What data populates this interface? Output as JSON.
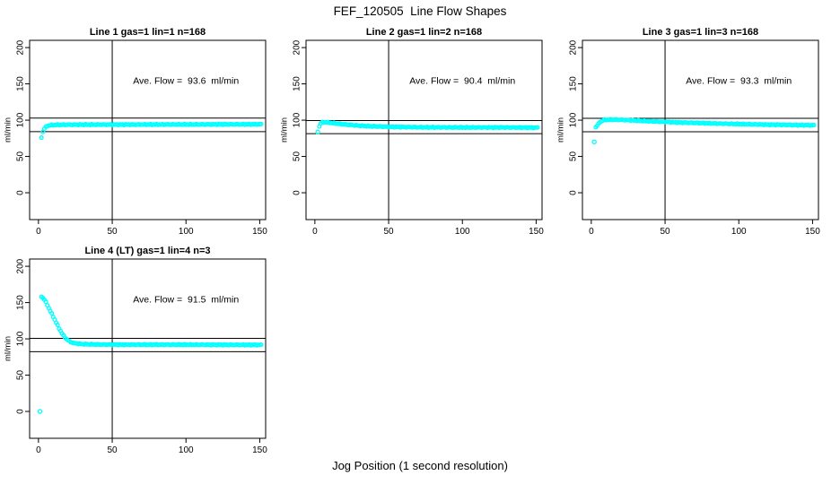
{
  "figure": {
    "title": "FEF_120505  Line Flow Shapes",
    "xlabel": "Jog Position (1 second resolution)",
    "background_color": "#ffffff",
    "axis_color": "#000000",
    "point_color": "#00ffff"
  },
  "chart_data": [
    {
      "type": "scatter",
      "title": "Line 1 gas=1 lin=1 n=168",
      "annotation": "Ave. Flow =  93.6  ml/min",
      "ave_flow_ml_min": 93.6,
      "ylabel": "ml/min",
      "x_ticks": [
        0,
        50,
        100,
        150
      ],
      "y_ticks": [
        0,
        50,
        100,
        150,
        200
      ],
      "xlim": [
        -6,
        154
      ],
      "ylim": [
        -37,
        210
      ],
      "vline_x": 50,
      "hlines": [
        102.9,
        84.2
      ],
      "point_color": "#00ffff",
      "x_step": 1,
      "x_range": [
        2,
        151
      ],
      "profile_anchors": [
        [
          2,
          76
        ],
        [
          3,
          84
        ],
        [
          4,
          88.5
        ],
        [
          5,
          90.5
        ],
        [
          6,
          92
        ],
        [
          8,
          93
        ],
        [
          12,
          93.5
        ],
        [
          20,
          93.7
        ],
        [
          40,
          93.8
        ],
        [
          80,
          94
        ],
        [
          120,
          94.2
        ],
        [
          151,
          94.3
        ]
      ],
      "outliers": []
    },
    {
      "type": "scatter",
      "title": "Line 2 gas=1 lin=2 n=168",
      "annotation": "Ave. Flow =  90.4  ml/min",
      "ave_flow_ml_min": 90.4,
      "ylabel": "ml/min",
      "x_ticks": [
        0,
        50,
        100,
        150
      ],
      "y_ticks": [
        0,
        50,
        100,
        150,
        200
      ],
      "xlim": [
        -6,
        154
      ],
      "ylim": [
        -37,
        210
      ],
      "vline_x": 50,
      "hlines": [
        99.4,
        81.4
      ],
      "point_color": "#00ffff",
      "x_step": 1,
      "x_range": [
        3,
        151
      ],
      "profile_anchors": [
        [
          3,
          91.5
        ],
        [
          4,
          95.5
        ],
        [
          5,
          96.8
        ],
        [
          7,
          97.2
        ],
        [
          10,
          96.6
        ],
        [
          15,
          95.2
        ],
        [
          20,
          94.2
        ],
        [
          25,
          93.2
        ],
        [
          30,
          92.4
        ],
        [
          40,
          91.4
        ],
        [
          50,
          90.8
        ],
        [
          70,
          90.2
        ],
        [
          100,
          89.9
        ],
        [
          130,
          89.9
        ],
        [
          151,
          89.7
        ]
      ],
      "outliers": [
        [
          2,
          83.5
        ]
      ]
    },
    {
      "type": "scatter",
      "title": "Line 3 gas=1 lin=3 n=168",
      "annotation": "Ave. Flow =  93.3  ml/min",
      "ave_flow_ml_min": 93.3,
      "ylabel": "ml/min",
      "x_ticks": [
        0,
        50,
        100,
        150
      ],
      "y_ticks": [
        0,
        50,
        100,
        150,
        200
      ],
      "xlim": [
        -6,
        154
      ],
      "ylim": [
        -37,
        210
      ],
      "vline_x": 50,
      "hlines": [
        102.6,
        84.0
      ],
      "point_color": "#00ffff",
      "x_step": 1,
      "x_range": [
        3,
        151
      ],
      "profile_anchors": [
        [
          3,
          90.5
        ],
        [
          4,
          92.5
        ],
        [
          5,
          95
        ],
        [
          6,
          97.5
        ],
        [
          8,
          99.8
        ],
        [
          10,
          100.4
        ],
        [
          15,
          100.6
        ],
        [
          20,
          100.4
        ],
        [
          25,
          100
        ],
        [
          30,
          99.4
        ],
        [
          40,
          98.4
        ],
        [
          50,
          97.6
        ],
        [
          60,
          96.8
        ],
        [
          80,
          95.6
        ],
        [
          100,
          94.6
        ],
        [
          120,
          93.8
        ],
        [
          151,
          92.9
        ]
      ],
      "outliers": [
        [
          2,
          70
        ]
      ]
    },
    {
      "type": "scatter",
      "title": "Line 4 (LT) gas=1 lin=4 n=3",
      "annotation": "Ave. Flow =  91.5  ml/min",
      "ave_flow_ml_min": 91.5,
      "ylabel": "ml/min",
      "x_ticks": [
        0,
        50,
        100,
        150
      ],
      "y_ticks": [
        0,
        50,
        100,
        150,
        200
      ],
      "xlim": [
        -6,
        154
      ],
      "ylim": [
        -37,
        210
      ],
      "vline_x": 50,
      "hlines": [
        100.7,
        82.4
      ],
      "point_color": "#00ffff",
      "x_step": 1,
      "x_range": [
        2,
        151
      ],
      "profile_anchors": [
        [
          2,
          158
        ],
        [
          3,
          156.5
        ],
        [
          4,
          154
        ],
        [
          5,
          150.5
        ],
        [
          6,
          146.5
        ],
        [
          7,
          142.5
        ],
        [
          8,
          138.5
        ],
        [
          9,
          134.5
        ],
        [
          10,
          130.5
        ],
        [
          11,
          126.5
        ],
        [
          12,
          122.5
        ],
        [
          13,
          118.5
        ],
        [
          14,
          114.5
        ],
        [
          15,
          111
        ],
        [
          16,
          107.5
        ],
        [
          17,
          104.5
        ],
        [
          18,
          102
        ],
        [
          19,
          99.8
        ],
        [
          20,
          98
        ],
        [
          22,
          95.5
        ],
        [
          24,
          94.2
        ],
        [
          26,
          93.4
        ],
        [
          30,
          92.7
        ],
        [
          40,
          92.2
        ],
        [
          60,
          92
        ],
        [
          100,
          92
        ],
        [
          151,
          91.6
        ]
      ],
      "outliers": [
        [
          1,
          0
        ]
      ]
    }
  ]
}
